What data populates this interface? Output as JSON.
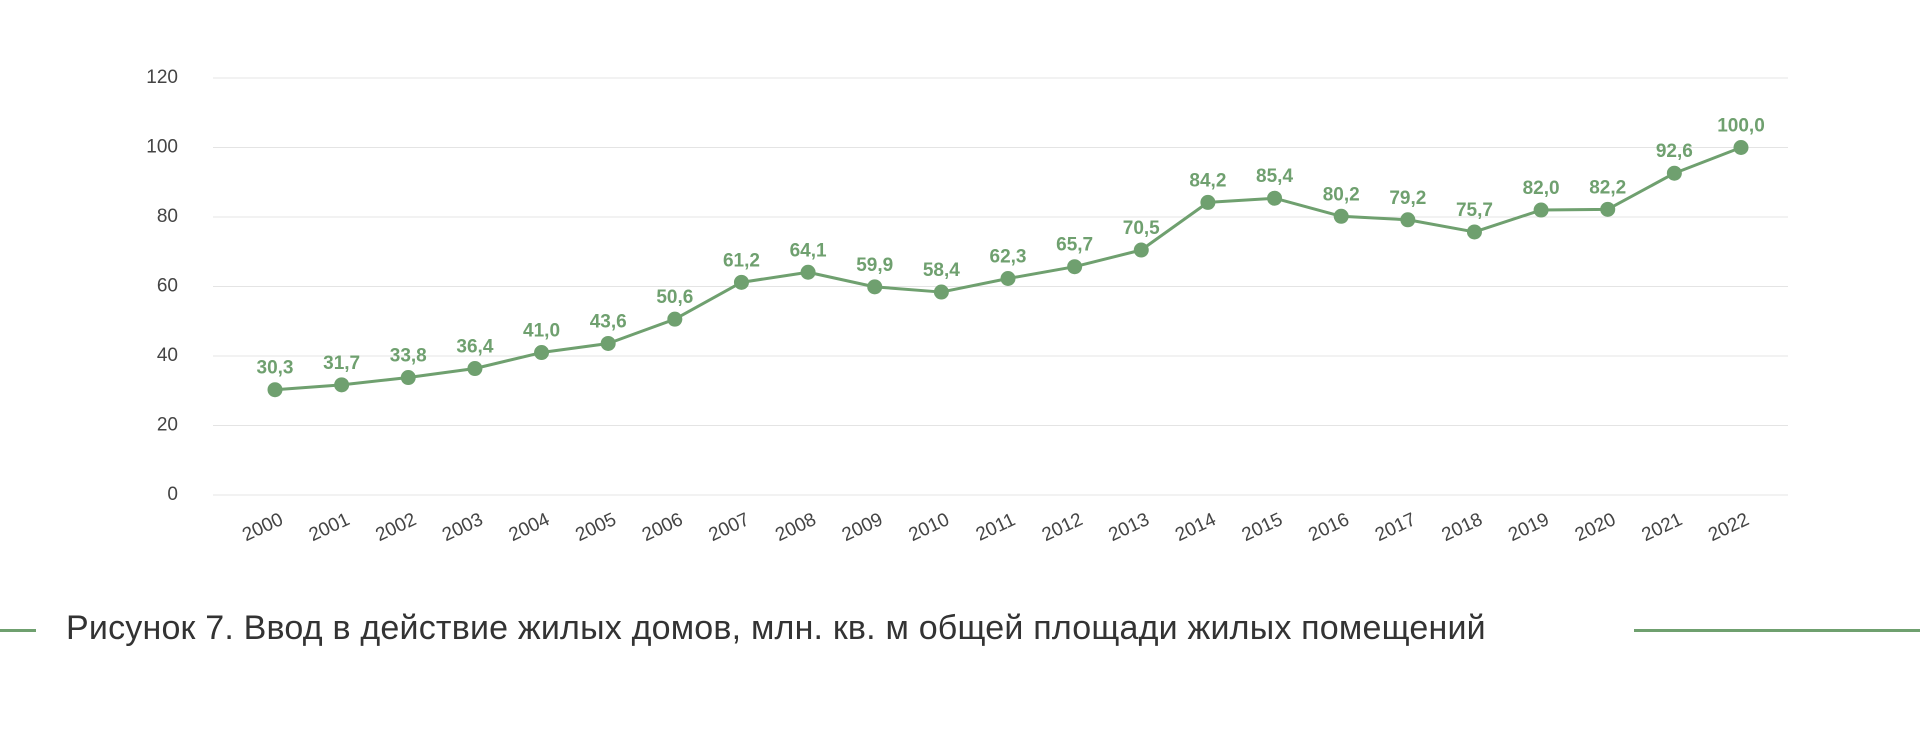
{
  "caption": "Рисунок 7. Ввод в действие жилых домов, млн. кв. м общей площади жилых помещений",
  "colors": {
    "series": "#6fa06f",
    "grid": "#e4e4e4",
    "text": "#444444"
  },
  "chart_data": {
    "type": "line",
    "categories": [
      "2000",
      "2001",
      "2002",
      "2003",
      "2004",
      "2005",
      "2006",
      "2007",
      "2008",
      "2009",
      "2010",
      "2011",
      "2012",
      "2013",
      "2014",
      "2015",
      "2016",
      "2017",
      "2018",
      "2019",
      "2020",
      "2021",
      "2022"
    ],
    "series": [
      {
        "values": [
          30.3,
          31.7,
          33.8,
          36.4,
          41.0,
          43.6,
          50.6,
          61.2,
          64.1,
          59.9,
          58.4,
          62.3,
          65.7,
          70.5,
          84.2,
          85.4,
          80.2,
          79.2,
          75.7,
          82.0,
          82.2,
          92.6,
          100.0
        ],
        "labels": [
          "30,3",
          "31,7",
          "33,8",
          "36,4",
          "41,0",
          "43,6",
          "50,6",
          "61,2",
          "64,1",
          "59,9",
          "58,4",
          "62,3",
          "65,7",
          "70,5",
          "84,2",
          "85,4",
          "80,2",
          "79,2",
          "75,7",
          "82,0",
          "82,2",
          "92,6",
          "100,0"
        ]
      }
    ],
    "yticks": [
      "0",
      "20",
      "40",
      "60",
      "80",
      "100",
      "120"
    ],
    "ylim": [
      0,
      120
    ],
    "grid": true,
    "legend": "none",
    "title": "",
    "xlabel": "",
    "ylabel": ""
  }
}
